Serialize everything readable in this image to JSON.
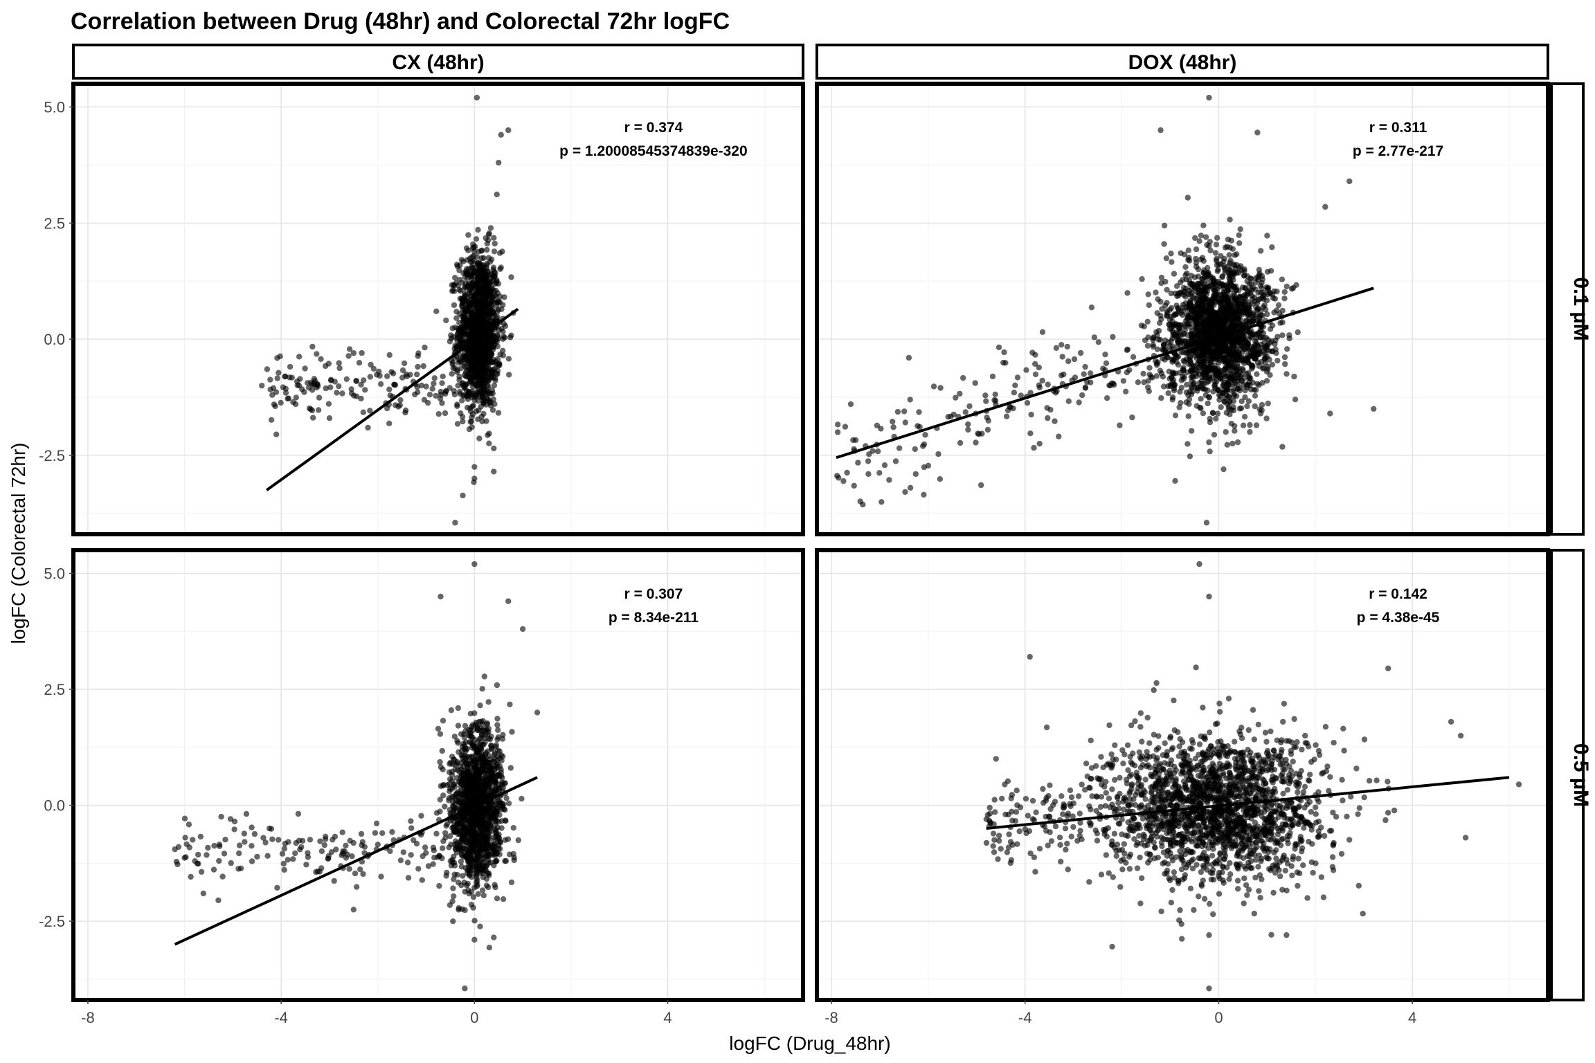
{
  "chart_data": {
    "type": "scatter",
    "title": "Correlation between Drug (48hr) and Colorectal 72hr logFC",
    "xlabel": "logFC (Drug_48hr)",
    "ylabel": "logFC (Colorectal 72hr)",
    "xlim": [
      -8.3,
      6.8
    ],
    "ylim": [
      -4.2,
      5.5
    ],
    "x_ticks": [
      -8,
      -4,
      0,
      4
    ],
    "x_tick_labels": [
      "-8",
      "-4",
      "0",
      "4"
    ],
    "y_ticks": [
      5.0,
      2.5,
      0.0,
      -2.5
    ],
    "y_tick_labels": [
      "5.0",
      "2.5",
      "0.0",
      "-2.5"
    ],
    "grid": true,
    "column_facets": [
      "CX (48hr)",
      "DOX (48hr)"
    ],
    "row_facets": [
      "0.1 µM",
      "0.5 µM"
    ],
    "point_color": "#000000",
    "point_opacity": 0.6,
    "line_color": "#000000",
    "panels": [
      {
        "row": 0,
        "col": 0,
        "r_text": "r = 0.374",
        "p_text": "p = 1.20008545374839e-320",
        "fit_line": {
          "x": [
            -4.3,
            0.9
          ],
          "y": [
            -3.25,
            0.65
          ]
        },
        "cluster": {
          "x_center": 0.1,
          "x_sd": 0.22,
          "y_center": 0.2,
          "y_sd": 0.85
        },
        "outliers": [
          {
            "x": 0.05,
            "y": 5.2
          },
          {
            "x": 0.7,
            "y": 4.5
          },
          {
            "x": 0.55,
            "y": 4.4
          },
          {
            "x": -0.4,
            "y": -3.95
          },
          {
            "x": 0.0,
            "y": -2.75
          },
          {
            "x": 0.0,
            "y": -3.0
          },
          {
            "x": 0.4,
            "y": -2.85
          },
          {
            "x": -4.4,
            "y": -1.0
          },
          {
            "x": -4.1,
            "y": -2.05
          },
          {
            "x": -3.7,
            "y": -1.4
          },
          {
            "x": -3.3,
            "y": -0.9
          },
          {
            "x": -2.5,
            "y": -0.3
          },
          {
            "x": -3.0,
            "y": -1.7
          },
          {
            "x": 0.5,
            "y": 3.8
          }
        ]
      },
      {
        "row": 0,
        "col": 1,
        "r_text": "r = 0.311",
        "p_text": "p = 2.77e-217",
        "fit_line": {
          "x": [
            -7.9,
            3.2
          ],
          "y": [
            -2.55,
            1.1
          ]
        },
        "cluster": {
          "x_center": 0.0,
          "x_sd": 0.55,
          "y_center": 0.15,
          "y_sd": 0.8
        },
        "outliers": [
          {
            "x": -0.2,
            "y": 5.2
          },
          {
            "x": -1.2,
            "y": 4.5
          },
          {
            "x": 0.8,
            "y": 4.45
          },
          {
            "x": -0.25,
            "y": -3.95
          },
          {
            "x": -0.9,
            "y": -3.05
          },
          {
            "x": 0.1,
            "y": -2.8
          },
          {
            "x": -7.6,
            "y": -1.4
          },
          {
            "x": -6.4,
            "y": -0.4
          },
          {
            "x": 3.2,
            "y": -1.5
          },
          {
            "x": 2.7,
            "y": 3.4
          },
          {
            "x": 2.2,
            "y": 2.85
          },
          {
            "x": -3.7,
            "y": -2.25
          },
          {
            "x": 2.3,
            "y": -1.6
          }
        ]
      },
      {
        "row": 1,
        "col": 0,
        "r_text": "r = 0.307",
        "p_text": "p = 8.34e-211",
        "fit_line": {
          "x": [
            -6.2,
            1.3
          ],
          "y": [
            -3.0,
            0.6
          ]
        },
        "cluster": {
          "x_center": 0.05,
          "x_sd": 0.28,
          "y_center": 0.0,
          "y_sd": 0.85
        },
        "outliers": [
          {
            "x": 0.0,
            "y": 5.2
          },
          {
            "x": -0.7,
            "y": 4.5
          },
          {
            "x": 0.7,
            "y": 4.4
          },
          {
            "x": -0.2,
            "y": -3.95
          },
          {
            "x": 0.0,
            "y": -2.9
          },
          {
            "x": 0.4,
            "y": -2.85
          },
          {
            "x": -6.2,
            "y": -0.95
          },
          {
            "x": -5.3,
            "y": -2.05
          },
          {
            "x": -2.5,
            "y": -2.25
          },
          {
            "x": 1.3,
            "y": 2.0
          },
          {
            "x": 1.0,
            "y": 3.8
          }
        ]
      },
      {
        "row": 1,
        "col": 1,
        "r_text": "r = 0.142",
        "p_text": "p = 4.38e-45",
        "fit_line": {
          "x": [
            -4.8,
            6.0
          ],
          "y": [
            -0.5,
            0.6
          ]
        },
        "cluster": {
          "x_center": 0.0,
          "x_sd": 1.1,
          "y_center": -0.05,
          "y_sd": 0.8
        },
        "outliers": [
          {
            "x": -0.4,
            "y": 5.2
          },
          {
            "x": -0.2,
            "y": 4.5
          },
          {
            "x": -0.2,
            "y": -3.95
          },
          {
            "x": -0.2,
            "y": -2.8
          },
          {
            "x": -2.2,
            "y": -3.05
          },
          {
            "x": 1.4,
            "y": -2.8
          },
          {
            "x": -4.8,
            "y": -0.3
          },
          {
            "x": -4.6,
            "y": 1.0
          },
          {
            "x": 6.2,
            "y": 0.45
          },
          {
            "x": 5.1,
            "y": -0.7
          },
          {
            "x": 3.5,
            "y": 2.95
          },
          {
            "x": 4.8,
            "y": 1.8
          },
          {
            "x": -3.9,
            "y": 3.2
          },
          {
            "x": 5.0,
            "y": 1.5
          }
        ]
      }
    ]
  }
}
